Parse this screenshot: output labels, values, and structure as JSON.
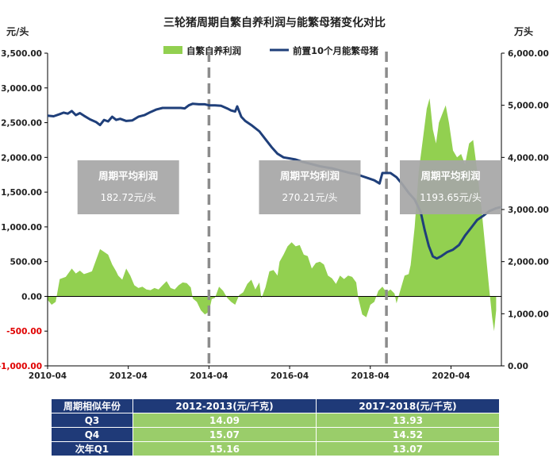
{
  "chart_data": {
    "type": "area+line",
    "title": "三轮猪周期自繁自养利润与能繁母猪变化对比",
    "left_unit": "元/头",
    "right_unit": "万头",
    "left_ticks": [
      "3,500.00",
      "3,000.00",
      "2,500.00",
      "2,000.00",
      "1,500.00",
      "1,000.00",
      "500.00",
      "0.00",
      "-500.00",
      "-1,000.00"
    ],
    "left_tick_values": [
      3500,
      3000,
      2500,
      2000,
      1500,
      1000,
      500,
      0,
      -500,
      -1000
    ],
    "right_ticks": [
      "6,000.00",
      "5,000.00",
      "4,000.00",
      "3,000.00",
      "2,000.00",
      "1,000.00",
      "0.00"
    ],
    "right_tick_values": [
      6000,
      5000,
      4000,
      3000,
      2000,
      1000,
      0
    ],
    "y_left_range": [
      -1000,
      3500
    ],
    "y_right_range": [
      0,
      6000
    ],
    "x_labels": [
      "2010-04",
      "2012-04",
      "2014-04",
      "2016-04",
      "2018-04",
      "2020-04"
    ],
    "x_label_years": [
      2010.25,
      2012.25,
      2014.25,
      2016.25,
      2018.25,
      2020.25
    ],
    "x_range": [
      2010.25,
      2021.5
    ],
    "legend_location": "top-center",
    "series": [
      {
        "name": "自繁自养利润",
        "axis": "left",
        "type": "area",
        "color": "#92d050",
        "points": [
          [
            2010.25,
            -50
          ],
          [
            2010.35,
            -120
          ],
          [
            2010.45,
            -80
          ],
          [
            2010.55,
            250
          ],
          [
            2010.7,
            280
          ],
          [
            2010.85,
            400
          ],
          [
            2010.95,
            330
          ],
          [
            2011.05,
            370
          ],
          [
            2011.15,
            320
          ],
          [
            2011.25,
            340
          ],
          [
            2011.35,
            360
          ],
          [
            2011.45,
            520
          ],
          [
            2011.55,
            680
          ],
          [
            2011.65,
            640
          ],
          [
            2011.75,
            600
          ],
          [
            2011.85,
            460
          ],
          [
            2011.95,
            360
          ],
          [
            2012.0,
            300
          ],
          [
            2012.1,
            240
          ],
          [
            2012.2,
            400
          ],
          [
            2012.3,
            300
          ],
          [
            2012.4,
            160
          ],
          [
            2012.5,
            120
          ],
          [
            2012.6,
            140
          ],
          [
            2012.7,
            100
          ],
          [
            2012.8,
            90
          ],
          [
            2012.9,
            120
          ],
          [
            2013.0,
            100
          ],
          [
            2013.1,
            160
          ],
          [
            2013.2,
            220
          ],
          [
            2013.3,
            120
          ],
          [
            2013.4,
            100
          ],
          [
            2013.5,
            160
          ],
          [
            2013.6,
            200
          ],
          [
            2013.7,
            190
          ],
          [
            2013.8,
            130
          ],
          [
            2013.85,
            -30
          ],
          [
            2013.95,
            -80
          ],
          [
            2014.05,
            -200
          ],
          [
            2014.15,
            -260
          ],
          [
            2014.25,
            -220
          ],
          [
            2014.32,
            -40
          ],
          [
            2014.4,
            -20
          ],
          [
            2014.5,
            140
          ],
          [
            2014.6,
            80
          ],
          [
            2014.7,
            -20
          ],
          [
            2014.8,
            -80
          ],
          [
            2014.9,
            -120
          ],
          [
            2015.0,
            20
          ],
          [
            2015.1,
            60
          ],
          [
            2015.2,
            180
          ],
          [
            2015.3,
            240
          ],
          [
            2015.4,
            100
          ],
          [
            2015.5,
            200
          ],
          [
            2015.55,
            -30
          ],
          [
            2015.65,
            130
          ],
          [
            2015.75,
            360
          ],
          [
            2015.85,
            380
          ],
          [
            2015.95,
            300
          ],
          [
            2016.0,
            500
          ],
          [
            2016.1,
            600
          ],
          [
            2016.2,
            720
          ],
          [
            2016.3,
            780
          ],
          [
            2016.4,
            720
          ],
          [
            2016.5,
            740
          ],
          [
            2016.6,
            600
          ],
          [
            2016.7,
            580
          ],
          [
            2016.8,
            400
          ],
          [
            2016.9,
            480
          ],
          [
            2017.0,
            500
          ],
          [
            2017.1,
            460
          ],
          [
            2017.2,
            300
          ],
          [
            2017.3,
            260
          ],
          [
            2017.4,
            180
          ],
          [
            2017.5,
            300
          ],
          [
            2017.6,
            250
          ],
          [
            2017.7,
            300
          ],
          [
            2017.8,
            280
          ],
          [
            2017.9,
            200
          ],
          [
            2017.95,
            -20
          ],
          [
            2018.05,
            -260
          ],
          [
            2018.15,
            -300
          ],
          [
            2018.25,
            -120
          ],
          [
            2018.35,
            -80
          ],
          [
            2018.45,
            80
          ],
          [
            2018.55,
            140
          ],
          [
            2018.65,
            60
          ],
          [
            2018.75,
            100
          ],
          [
            2018.85,
            40
          ],
          [
            2018.9,
            -100
          ],
          [
            2019.0,
            100
          ],
          [
            2019.1,
            300
          ],
          [
            2019.2,
            320
          ],
          [
            2019.25,
            450
          ],
          [
            2019.35,
            1000
          ],
          [
            2019.45,
            1800
          ],
          [
            2019.55,
            2250
          ],
          [
            2019.65,
            2700
          ],
          [
            2019.72,
            2850
          ],
          [
            2019.8,
            2400
          ],
          [
            2019.88,
            2200
          ],
          [
            2019.95,
            2500
          ],
          [
            2020.05,
            2650
          ],
          [
            2020.12,
            2750
          ],
          [
            2020.2,
            2500
          ],
          [
            2020.3,
            2100
          ],
          [
            2020.4,
            2000
          ],
          [
            2020.5,
            2050
          ],
          [
            2020.6,
            1900
          ],
          [
            2020.7,
            2200
          ],
          [
            2020.8,
            2250
          ],
          [
            2020.9,
            1800
          ],
          [
            2021.0,
            1300
          ],
          [
            2021.1,
            700
          ],
          [
            2021.2,
            100
          ],
          [
            2021.27,
            -300
          ],
          [
            2021.32,
            -500
          ],
          [
            2021.37,
            -200
          ]
        ]
      },
      {
        "name": "前置10个月能繁母猪",
        "axis": "right",
        "type": "line",
        "color": "#1f3f7a",
        "points": [
          [
            2010.25,
            4800
          ],
          [
            2010.4,
            4790
          ],
          [
            2010.55,
            4830
          ],
          [
            2010.65,
            4860
          ],
          [
            2010.75,
            4840
          ],
          [
            2010.85,
            4890
          ],
          [
            2010.95,
            4810
          ],
          [
            2011.05,
            4850
          ],
          [
            2011.15,
            4800
          ],
          [
            2011.3,
            4730
          ],
          [
            2011.45,
            4680
          ],
          [
            2011.55,
            4620
          ],
          [
            2011.65,
            4720
          ],
          [
            2011.75,
            4690
          ],
          [
            2011.85,
            4780
          ],
          [
            2011.95,
            4720
          ],
          [
            2012.05,
            4740
          ],
          [
            2012.2,
            4700
          ],
          [
            2012.35,
            4710
          ],
          [
            2012.5,
            4780
          ],
          [
            2012.65,
            4810
          ],
          [
            2012.8,
            4870
          ],
          [
            2012.95,
            4920
          ],
          [
            2013.1,
            4950
          ],
          [
            2013.25,
            4950
          ],
          [
            2013.4,
            4950
          ],
          [
            2013.55,
            4950
          ],
          [
            2013.65,
            4940
          ],
          [
            2013.75,
            5000
          ],
          [
            2013.85,
            5030
          ],
          [
            2014.0,
            5020
          ],
          [
            2014.15,
            5020
          ],
          [
            2014.25,
            5000
          ],
          [
            2014.4,
            5000
          ],
          [
            2014.55,
            4990
          ],
          [
            2014.7,
            4940
          ],
          [
            2014.8,
            4900
          ],
          [
            2014.9,
            4880
          ],
          [
            2014.95,
            4980
          ],
          [
            2015.05,
            4780
          ],
          [
            2015.15,
            4700
          ],
          [
            2015.3,
            4620
          ],
          [
            2015.5,
            4500
          ],
          [
            2015.65,
            4350
          ],
          [
            2015.8,
            4200
          ],
          [
            2015.95,
            4070
          ],
          [
            2016.1,
            4000
          ],
          [
            2016.25,
            3980
          ],
          [
            2016.4,
            3960
          ],
          [
            2016.55,
            3920
          ],
          [
            2016.7,
            3890
          ],
          [
            2016.85,
            3860
          ],
          [
            2017.0,
            3830
          ],
          [
            2017.15,
            3810
          ],
          [
            2017.3,
            3790
          ],
          [
            2017.45,
            3760
          ],
          [
            2017.6,
            3730
          ],
          [
            2017.75,
            3700
          ],
          [
            2017.9,
            3680
          ],
          [
            2018.05,
            3640
          ],
          [
            2018.2,
            3600
          ],
          [
            2018.35,
            3560
          ],
          [
            2018.48,
            3500
          ],
          [
            2018.55,
            3700
          ],
          [
            2018.75,
            3700
          ],
          [
            2018.9,
            3620
          ],
          [
            2019.05,
            3480
          ],
          [
            2019.2,
            3320
          ],
          [
            2019.35,
            3190
          ],
          [
            2019.5,
            2950
          ],
          [
            2019.6,
            2600
          ],
          [
            2019.7,
            2300
          ],
          [
            2019.8,
            2100
          ],
          [
            2019.9,
            2060
          ],
          [
            2020.0,
            2100
          ],
          [
            2020.15,
            2180
          ],
          [
            2020.3,
            2230
          ],
          [
            2020.45,
            2320
          ],
          [
            2020.6,
            2500
          ],
          [
            2020.75,
            2650
          ],
          [
            2020.9,
            2800
          ],
          [
            2021.05,
            2880
          ],
          [
            2021.2,
            2970
          ],
          [
            2021.35,
            3020
          ],
          [
            2021.5,
            3050
          ]
        ]
      }
    ],
    "cycle_dividers": [
      2014.25,
      2018.65
    ],
    "cycle_boxes": [
      {
        "label": "周期平均利润",
        "value": "182.72元/头",
        "x_center": 2012.25
      },
      {
        "label": "周期平均利润",
        "value": "270.21元/头",
        "x_center": 2016.75
      },
      {
        "label": "周期平均利润",
        "value": "1193.65元/头",
        "x_center": 2020.3
      }
    ]
  },
  "table": {
    "headers": [
      "周期相似年份",
      "2012-2013(元/千克)",
      "2017-2018(元/千克)"
    ],
    "rows": [
      [
        "Q3",
        "14.09",
        "13.93"
      ],
      [
        "Q4",
        "15.07",
        "14.52"
      ],
      [
        "次年Q1",
        "15.16",
        "13.07"
      ]
    ]
  }
}
